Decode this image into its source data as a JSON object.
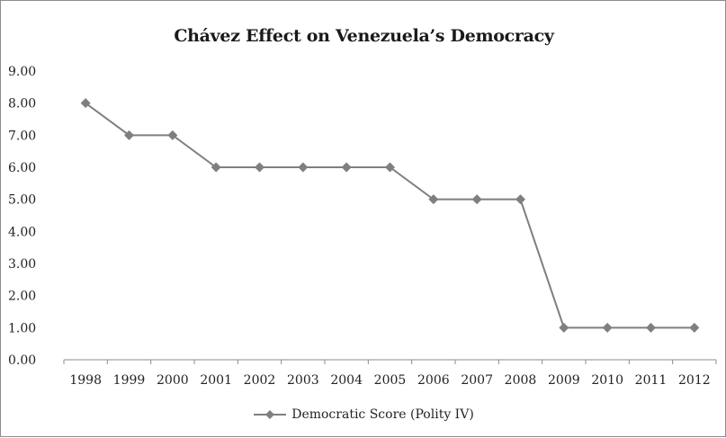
{
  "chart_data": {
    "type": "line",
    "title": "Chávez Effect on Venezuela’s Democracy",
    "xlabel": "",
    "ylabel": "",
    "categories": [
      "1998",
      "1999",
      "2000",
      "2001",
      "2002",
      "2003",
      "2004",
      "2005",
      "2006",
      "2007",
      "2008",
      "2009",
      "2010",
      "2011",
      "2012"
    ],
    "series": [
      {
        "name": "Democratic Score (Polity IV)",
        "values": [
          8,
          7,
          7,
          6,
          6,
          6,
          6,
          6,
          5,
          5,
          5,
          1,
          1,
          1,
          1
        ],
        "color": "#7f7f7f",
        "marker": "diamond"
      }
    ],
    "ylim": [
      0,
      9
    ],
    "yticks": [
      "0.00",
      "1.00",
      "2.00",
      "3.00",
      "4.00",
      "5.00",
      "6.00",
      "7.00",
      "8.00",
      "9.00"
    ],
    "grid": false,
    "legend_position": "bottom"
  }
}
